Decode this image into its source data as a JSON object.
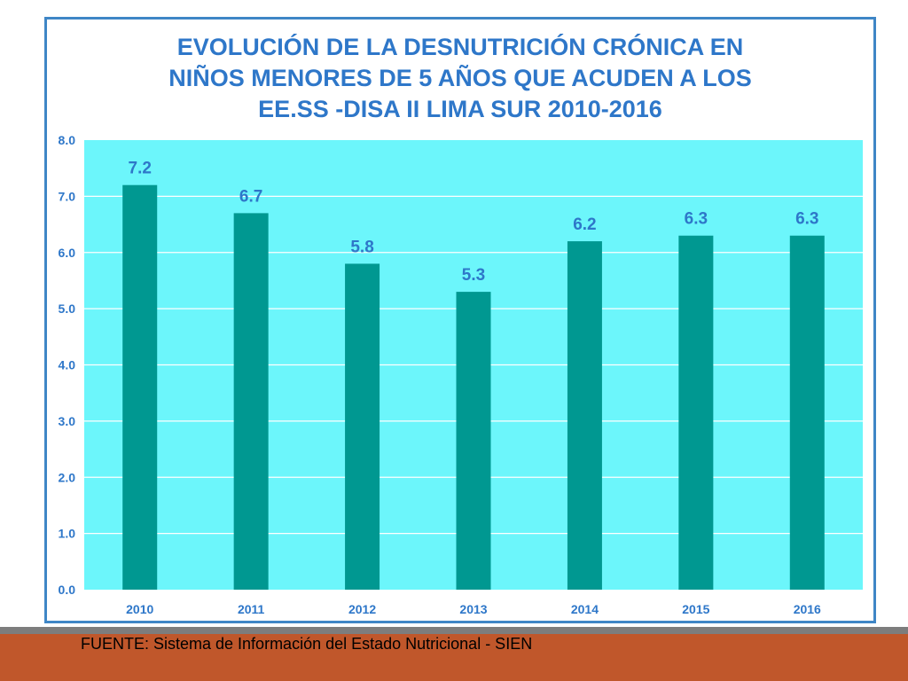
{
  "chart_data": {
    "type": "bar",
    "title_lines": [
      "EVOLUCIÓN DE LA DESNUTRICIÓN CRÓNICA EN",
      "NIÑOS MENORES DE 5 AÑOS QUE ACUDEN A LOS",
      "EE.SS -DISA II LIMA SUR 2010-2016"
    ],
    "categories": [
      "2010",
      "2011",
      "2012",
      "2013",
      "2014",
      "2015",
      "2016"
    ],
    "values": [
      7.2,
      6.7,
      5.8,
      5.3,
      6.2,
      6.3,
      6.3
    ],
    "data_labels": [
      "7.2",
      "6.7",
      "5.8",
      "5.3",
      "6.2",
      "6.3",
      "6.3"
    ],
    "ylim": [
      0,
      8
    ],
    "yticks": [
      0,
      1,
      2,
      3,
      4,
      5,
      6,
      7,
      8
    ],
    "ytick_labels": [
      "0.0",
      "1.0",
      "2.0",
      "3.0",
      "4.0",
      "5.0",
      "6.0",
      "7.0",
      "8.0"
    ],
    "xlabel": "",
    "ylabel": "",
    "grid": true,
    "legend": "none",
    "colors": {
      "bar": "#009891",
      "plot_background": "#6cf6fb",
      "gridline": "#ffffff",
      "text": "#2e77c9",
      "frame": "#3f86c6"
    }
  },
  "footer": {
    "source": "FUENTE: Sistema de Información del Estado Nutricional - SIEN",
    "band_color": "#c0572b"
  }
}
